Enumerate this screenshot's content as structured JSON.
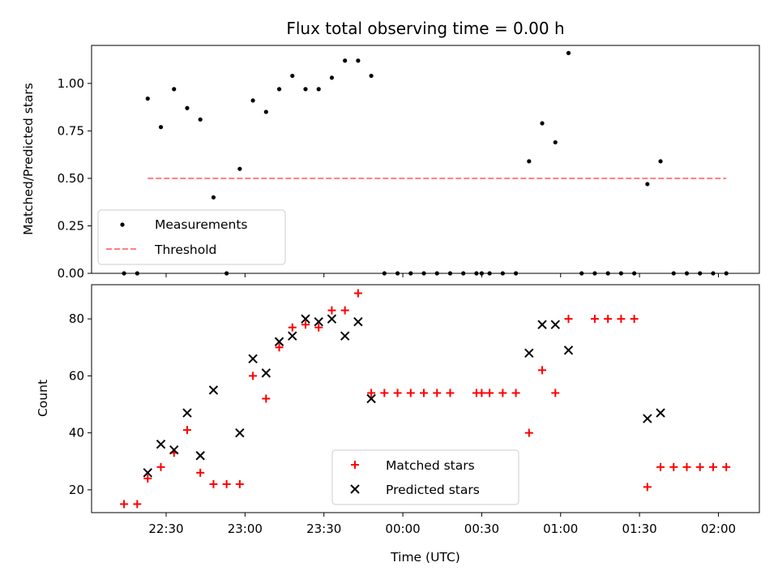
{
  "chart_data": [
    {
      "type": "scatter",
      "title": "Flux total observing time = 0.00 h",
      "ylabel": "Matched/Predicted stars",
      "xlabel": "",
      "ylim": [
        0,
        1.2
      ],
      "yticks": [
        "0.00",
        "0.25",
        "0.50",
        "0.75",
        "1.00"
      ],
      "yticks_values": [
        0,
        0.25,
        0.5,
        0.75,
        1.0
      ],
      "legend_position": "lower-left",
      "threshold": {
        "name": "Threshold",
        "value": 0.5,
        "x_start": "22:23",
        "x_end": "02:03",
        "color": "#ff7f7f"
      },
      "series": [
        {
          "name": "Measurements",
          "color": "#000000",
          "points": [
            [
              "22:14",
              0.0
            ],
            [
              "22:19",
              0.0
            ],
            [
              "22:23",
              0.92
            ],
            [
              "22:28",
              0.77
            ],
            [
              "22:33",
              0.97
            ],
            [
              "22:38",
              0.87
            ],
            [
              "22:43",
              0.81
            ],
            [
              "22:48",
              0.4
            ],
            [
              "22:53",
              0.0
            ],
            [
              "22:58",
              0.55
            ],
            [
              "23:03",
              0.91
            ],
            [
              "23:08",
              0.85
            ],
            [
              "23:13",
              0.97
            ],
            [
              "23:18",
              1.04
            ],
            [
              "23:23",
              0.97
            ],
            [
              "23:28",
              0.97
            ],
            [
              "23:33",
              1.03
            ],
            [
              "23:38",
              1.12
            ],
            [
              "23:43",
              1.12
            ],
            [
              "23:48",
              1.04
            ],
            [
              "23:53",
              0.0
            ],
            [
              "23:58",
              0.0
            ],
            [
              "00:03",
              0.0
            ],
            [
              "00:08",
              0.0
            ],
            [
              "00:13",
              0.0
            ],
            [
              "00:18",
              0.0
            ],
            [
              "00:23",
              0.0
            ],
            [
              "00:28",
              0.0
            ],
            [
              "00:30",
              0.0
            ],
            [
              "00:33",
              0.0
            ],
            [
              "00:38",
              0.0
            ],
            [
              "00:43",
              0.0
            ],
            [
              "00:48",
              0.59
            ],
            [
              "00:53",
              0.79
            ],
            [
              "00:58",
              0.69
            ],
            [
              "01:03",
              1.16
            ],
            [
              "01:08",
              0.0
            ],
            [
              "01:13",
              0.0
            ],
            [
              "01:18",
              0.0
            ],
            [
              "01:23",
              0.0
            ],
            [
              "01:28",
              0.0
            ],
            [
              "01:33",
              0.47
            ],
            [
              "01:38",
              0.59
            ],
            [
              "01:43",
              0.0
            ],
            [
              "01:48",
              0.0
            ],
            [
              "01:53",
              0.0
            ],
            [
              "01:58",
              0.0
            ],
            [
              "02:03",
              0.0
            ]
          ]
        }
      ]
    },
    {
      "type": "scatter",
      "title": "",
      "ylabel": "Count",
      "xlabel": "Time (UTC)",
      "ylim": [
        12,
        92
      ],
      "yticks": [
        "20",
        "40",
        "60",
        "80"
      ],
      "yticks_values": [
        20,
        40,
        60,
        80
      ],
      "xticks": [
        "22:30",
        "23:00",
        "23:30",
        "00:00",
        "00:30",
        "01:00",
        "01:30",
        "02:00"
      ],
      "legend_position": "lower-center",
      "series": [
        {
          "name": "Matched stars",
          "color": "#ff0000",
          "marker": "plus",
          "points": [
            [
              "22:14",
              15
            ],
            [
              "22:19",
              15
            ],
            [
              "22:23",
              24
            ],
            [
              "22:28",
              28
            ],
            [
              "22:33",
              33
            ],
            [
              "22:38",
              41
            ],
            [
              "22:43",
              26
            ],
            [
              "22:48",
              22
            ],
            [
              "22:53",
              22
            ],
            [
              "22:58",
              22
            ],
            [
              "23:03",
              60
            ],
            [
              "23:08",
              52
            ],
            [
              "23:13",
              70
            ],
            [
              "23:18",
              77
            ],
            [
              "23:23",
              78
            ],
            [
              "23:28",
              77
            ],
            [
              "23:33",
              83
            ],
            [
              "23:38",
              83
            ],
            [
              "23:43",
              89
            ],
            [
              "23:48",
              54
            ],
            [
              "23:53",
              54
            ],
            [
              "23:58",
              54
            ],
            [
              "00:03",
              54
            ],
            [
              "00:08",
              54
            ],
            [
              "00:13",
              54
            ],
            [
              "00:18",
              54
            ],
            [
              "00:28",
              54
            ],
            [
              "00:30",
              54
            ],
            [
              "00:33",
              54
            ],
            [
              "00:38",
              54
            ],
            [
              "00:43",
              54
            ],
            [
              "00:48",
              40
            ],
            [
              "00:53",
              62
            ],
            [
              "00:58",
              54
            ],
            [
              "01:03",
              80
            ],
            [
              "01:13",
              80
            ],
            [
              "01:18",
              80
            ],
            [
              "01:23",
              80
            ],
            [
              "01:28",
              80
            ],
            [
              "01:33",
              21
            ],
            [
              "01:38",
              28
            ],
            [
              "01:43",
              28
            ],
            [
              "01:48",
              28
            ],
            [
              "01:53",
              28
            ],
            [
              "01:58",
              28
            ],
            [
              "02:03",
              28
            ]
          ]
        },
        {
          "name": "Predicted stars",
          "color": "#000000",
          "marker": "x",
          "points": [
            [
              "22:23",
              26
            ],
            [
              "22:28",
              36
            ],
            [
              "22:33",
              34
            ],
            [
              "22:38",
              47
            ],
            [
              "22:43",
              32
            ],
            [
              "22:48",
              55
            ],
            [
              "22:58",
              40
            ],
            [
              "23:03",
              66
            ],
            [
              "23:08",
              61
            ],
            [
              "23:13",
              72
            ],
            [
              "23:18",
              74
            ],
            [
              "23:23",
              80
            ],
            [
              "23:28",
              79
            ],
            [
              "23:33",
              80
            ],
            [
              "23:38",
              74
            ],
            [
              "23:43",
              79
            ],
            [
              "23:48",
              52
            ],
            [
              "00:48",
              68
            ],
            [
              "00:53",
              78
            ],
            [
              "00:58",
              78
            ],
            [
              "01:03",
              69
            ],
            [
              "01:33",
              45
            ],
            [
              "01:38",
              47
            ]
          ]
        }
      ]
    }
  ]
}
